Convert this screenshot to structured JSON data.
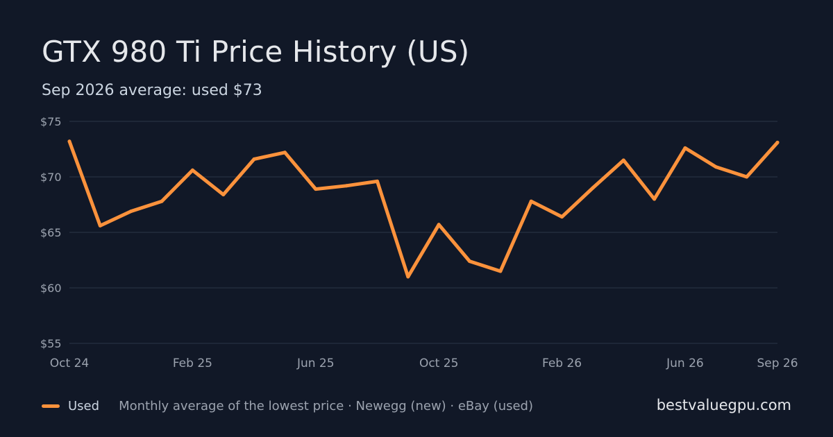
{
  "title": "GTX 980 Ti Price History (US)",
  "subtitle": "Sep 2026 average: used $73",
  "legend": {
    "series_label": "Used",
    "note": "Monthly average of the lowest price · Newegg (new) · eBay (used)"
  },
  "brand": "bestvaluegpu.com",
  "colors": {
    "background": "#111827",
    "used_line": "#fb923c",
    "grid": "#263041",
    "axis_text": "#9ca3af"
  },
  "chart_data": {
    "type": "line",
    "x": [
      "Oct 24",
      "Nov 24",
      "Dec 24",
      "Jan 25",
      "Feb 25",
      "Mar 25",
      "Apr 25",
      "May 25",
      "Jun 25",
      "Jul 25",
      "Aug 25",
      "Sep 25",
      "Oct 25",
      "Nov 25",
      "Dec 25",
      "Jan 26",
      "Feb 26",
      "Mar 26",
      "Apr 26",
      "May 26",
      "Jun 26",
      "Jul 26",
      "Aug 26",
      "Sep 26"
    ],
    "series": [
      {
        "name": "Used",
        "values": [
          73.2,
          65.6,
          66.9,
          67.8,
          70.6,
          68.4,
          71.6,
          72.2,
          68.9,
          69.2,
          69.6,
          61.0,
          65.7,
          62.4,
          61.5,
          67.8,
          66.4,
          69.0,
          71.5,
          68.0,
          72.6,
          70.9,
          70.0,
          73.1
        ]
      }
    ],
    "x_tick_labels": [
      "Oct 24",
      "Feb 25",
      "Jun 25",
      "Oct 25",
      "Feb 26",
      "Jun 26",
      "Sep 26"
    ],
    "y_ticks": [
      55,
      60,
      65,
      70,
      75
    ],
    "y_tick_labels": [
      "$55",
      "$60",
      "$65",
      "$70",
      "$75"
    ],
    "ylim": [
      55,
      75
    ],
    "grid": true,
    "legend_position": "bottom-left"
  }
}
